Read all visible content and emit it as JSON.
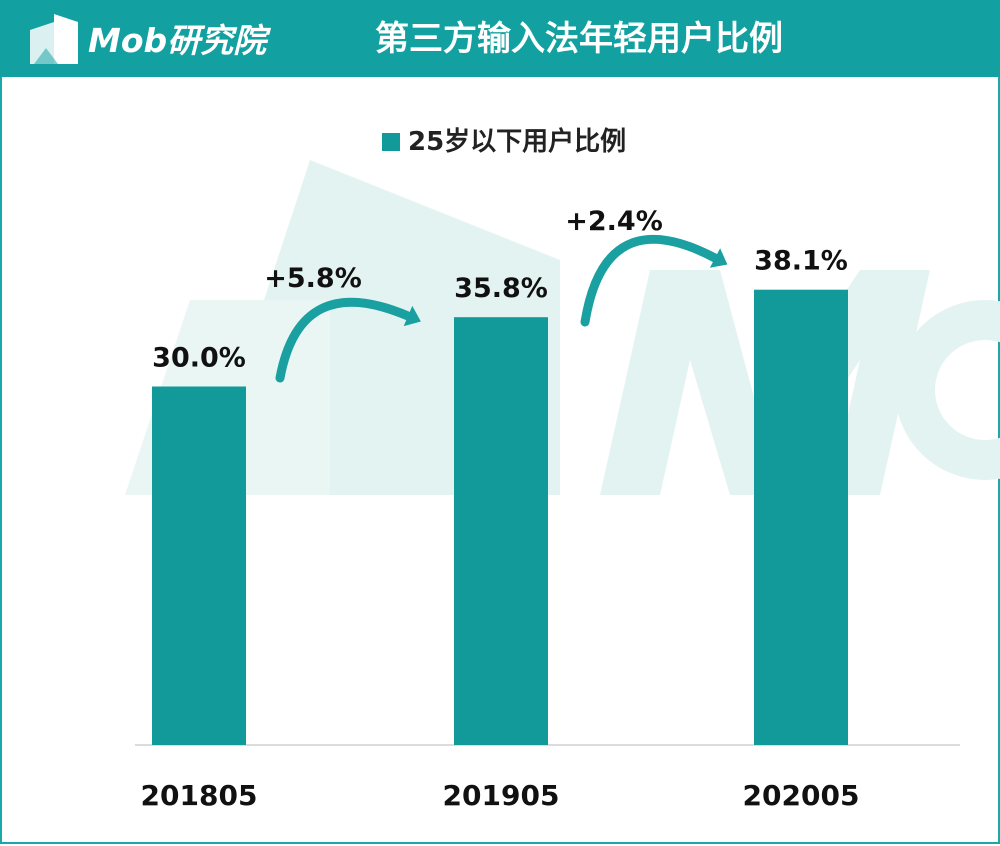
{
  "header": {
    "logo_text": "Mob研究院",
    "title": "第三方输入法年轻用户比例"
  },
  "colors": {
    "header_bg": "#12a0a0",
    "bar": "#12999a",
    "arrow": "#1aa0a0",
    "watermark": "#dff1ef"
  },
  "icons": {
    "logo": "mob-logo-icon",
    "growth_arrow": "curved-arrow-icon"
  },
  "chart_data": {
    "type": "bar",
    "categories": [
      "201805",
      "201905",
      "202005"
    ],
    "series": [
      {
        "name": "25岁以下用户比例",
        "values": [
          30.0,
          35.8,
          38.1
        ]
      }
    ],
    "data_labels": [
      "30.0%",
      "35.8%",
      "38.1%"
    ],
    "annotations": [
      "+5.8%",
      "+2.4%"
    ],
    "ylim": [
      0,
      40
    ],
    "grid": false,
    "legend": "top-center",
    "title": "",
    "xlabel": "",
    "ylabel": ""
  }
}
